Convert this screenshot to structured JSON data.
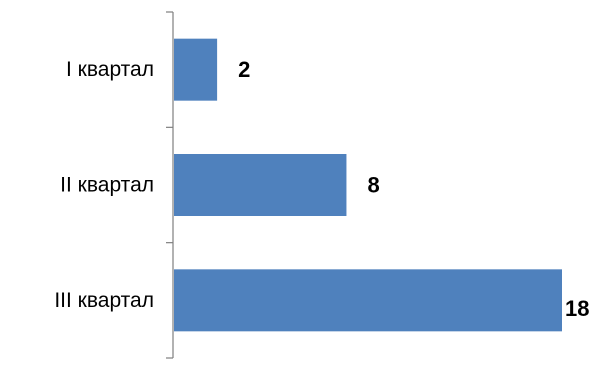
{
  "chart_data": {
    "type": "bar",
    "orientation": "horizontal",
    "categories": [
      "I квартал",
      "II квартал",
      "III квартал"
    ],
    "values": [
      2,
      8,
      18
    ],
    "data_labels": [
      "2",
      "8",
      "18"
    ],
    "title": "",
    "xlabel": "",
    "ylabel": "",
    "xlim": [
      0,
      18
    ],
    "grid": false,
    "legend": "none",
    "bar_color": "#4F81BD",
    "axis_color": "#7F7F7F"
  }
}
